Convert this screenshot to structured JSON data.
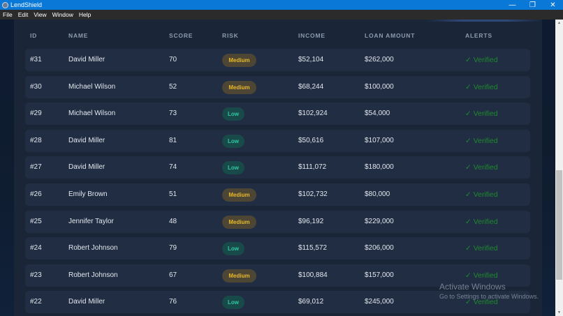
{
  "window": {
    "title": "LendShield",
    "controls": {
      "minimize": "—",
      "maximize": "❐",
      "close": "✕"
    }
  },
  "menu": [
    "File",
    "Edit",
    "View",
    "Window",
    "Help"
  ],
  "table": {
    "columns": [
      "ID",
      "NAME",
      "SCORE",
      "RISK",
      "INCOME",
      "LOAN AMOUNT",
      "ALERTS"
    ],
    "rows": [
      {
        "id": "#31",
        "name": "David Miller",
        "score": "70",
        "risk": "Medium",
        "income": "$52,104",
        "loan": "$262,000",
        "alert": "✓ Verified"
      },
      {
        "id": "#30",
        "name": "Michael Wilson",
        "score": "52",
        "risk": "Medium",
        "income": "$68,244",
        "loan": "$100,000",
        "alert": "✓ Verified"
      },
      {
        "id": "#29",
        "name": "Michael Wilson",
        "score": "73",
        "risk": "Low",
        "income": "$102,924",
        "loan": "$54,000",
        "alert": "✓ Verified"
      },
      {
        "id": "#28",
        "name": "David Miller",
        "score": "81",
        "risk": "Low",
        "income": "$50,616",
        "loan": "$107,000",
        "alert": "✓ Verified"
      },
      {
        "id": "#27",
        "name": "David Miller",
        "score": "74",
        "risk": "Low",
        "income": "$111,072",
        "loan": "$180,000",
        "alert": "✓ Verified"
      },
      {
        "id": "#26",
        "name": "Emily Brown",
        "score": "51",
        "risk": "Medium",
        "income": "$102,732",
        "loan": "$80,000",
        "alert": "✓ Verified"
      },
      {
        "id": "#25",
        "name": "Jennifer Taylor",
        "score": "48",
        "risk": "Medium",
        "income": "$96,192",
        "loan": "$229,000",
        "alert": "✓ Verified"
      },
      {
        "id": "#24",
        "name": "Robert Johnson",
        "score": "79",
        "risk": "Low",
        "income": "$115,572",
        "loan": "$206,000",
        "alert": "✓ Verified"
      },
      {
        "id": "#23",
        "name": "Robert Johnson",
        "score": "67",
        "risk": "Medium",
        "income": "$100,884",
        "loan": "$157,000",
        "alert": "✓ Verified"
      },
      {
        "id": "#22",
        "name": "David Miller",
        "score": "76",
        "risk": "Low",
        "income": "$69,012",
        "loan": "$245,000",
        "alert": "✓ Verified"
      }
    ]
  },
  "colors": {
    "titlebar": "#0a78d7",
    "medium_badge_text": "#e8b92a",
    "low_badge_text": "#30c8a0",
    "verified": "#1d8a2e"
  },
  "watermark": {
    "title": "Activate Windows",
    "subtitle": "Go to Settings to activate Windows."
  }
}
